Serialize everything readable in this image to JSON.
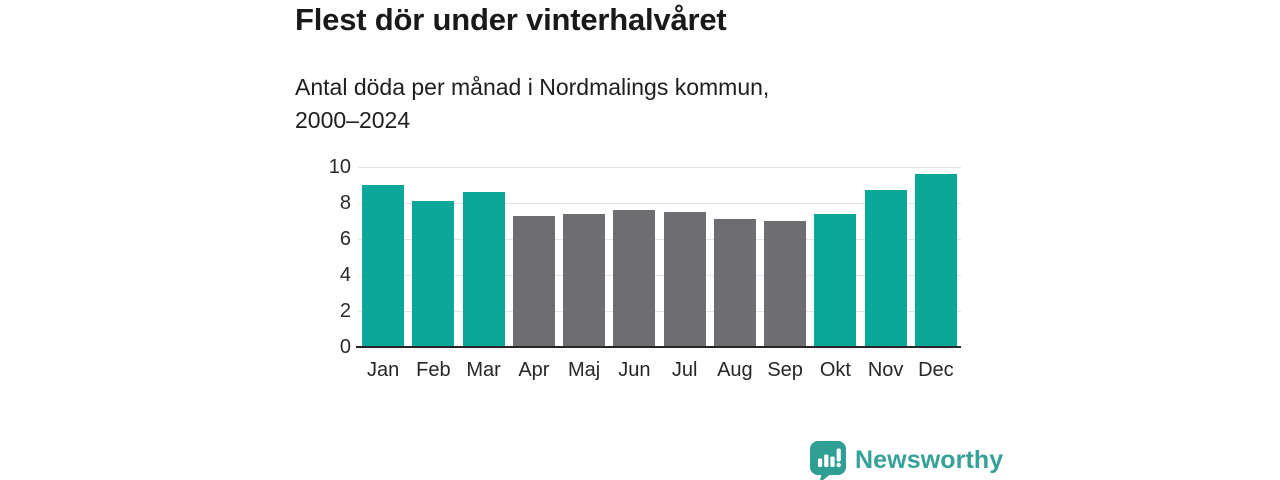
{
  "header": {
    "title": "Flest dör under vinterhalvåret",
    "subtitle_line1": "Antal döda per månad i Nordmalings kommun,",
    "subtitle_line2": "2000–2024"
  },
  "chart_data": {
    "type": "bar",
    "title": "Flest dör under vinterhalvåret",
    "subtitle": "Antal döda per månad i Nordmalings kommun, 2000–2024",
    "categories": [
      "Jan",
      "Feb",
      "Mar",
      "Apr",
      "Maj",
      "Jun",
      "Jul",
      "Aug",
      "Sep",
      "Okt",
      "Nov",
      "Dec"
    ],
    "values": [
      9.0,
      8.1,
      8.6,
      7.3,
      7.4,
      7.6,
      7.5,
      7.1,
      7.0,
      7.4,
      8.7,
      9.6
    ],
    "bar_groups": [
      "winter",
      "winter",
      "winter",
      "summer",
      "summer",
      "summer",
      "summer",
      "summer",
      "summer",
      "winter",
      "winter",
      "winter"
    ],
    "palette": {
      "winter": "#0CA79B",
      "summer": "#6E6D71"
    },
    "xlabel": "",
    "ylabel": "",
    "ylim": [
      0,
      10
    ],
    "yticks": [
      0,
      2,
      4,
      6,
      8,
      10
    ],
    "grid": true,
    "gridline_color": "#e4e4e4",
    "axis_line_color": "#262626",
    "legend": "none"
  },
  "branding": {
    "logo_text": "Newsworthy",
    "logo_icon": "bar-chart-speech-bubble-icon",
    "logo_color": "#35a198"
  }
}
